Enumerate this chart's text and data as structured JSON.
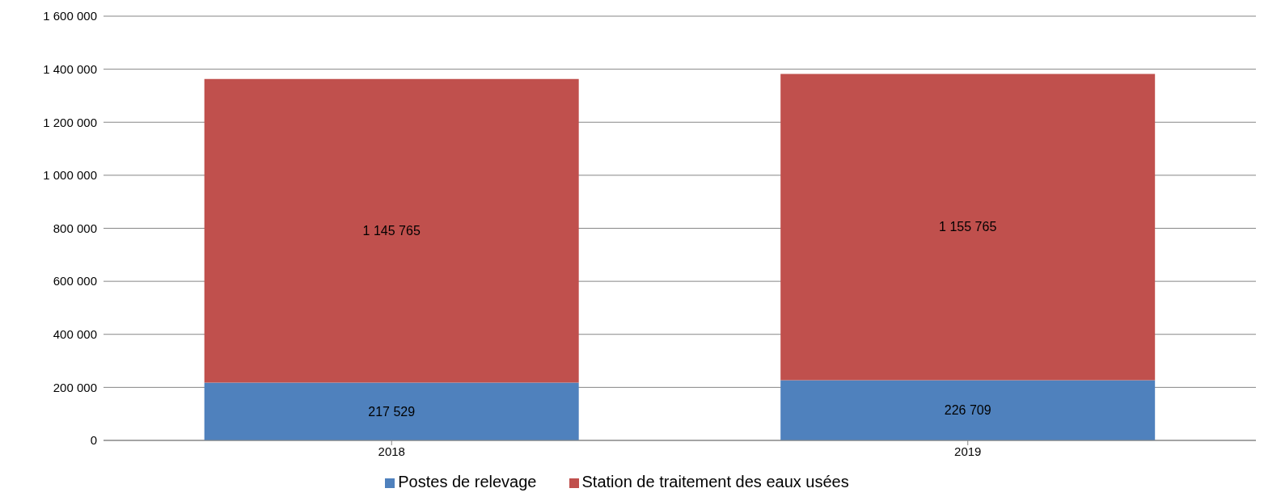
{
  "chart_data": {
    "type": "bar",
    "stacked": true,
    "categories": [
      "2018",
      "2019"
    ],
    "series": [
      {
        "name": "Postes de relevage",
        "color": "#4f81bd",
        "values": [
          217529,
          226709
        ],
        "value_labels": [
          "217 529",
          "226 709"
        ]
      },
      {
        "name": "Station de traitement des eaux usées",
        "color": "#c0504d",
        "values": [
          1145765,
          1155765
        ],
        "value_labels": [
          "1 145 765",
          "1 155 765"
        ]
      }
    ],
    "ylim": [
      0,
      1600000
    ],
    "yticks": [
      {
        "value": 0,
        "label": "0"
      },
      {
        "value": 200000,
        "label": "200 000"
      },
      {
        "value": 400000,
        "label": "400 000"
      },
      {
        "value": 600000,
        "label": "600 000"
      },
      {
        "value": 800000,
        "label": "800 000"
      },
      {
        "value": 1000000,
        "label": "1 000 000"
      },
      {
        "value": 1200000,
        "label": "1 200 000"
      },
      {
        "value": 1400000,
        "label": "1 400 000"
      },
      {
        "value": 1600000,
        "label": "1 600 000"
      }
    ],
    "grid": "y",
    "legend": "bottom"
  }
}
